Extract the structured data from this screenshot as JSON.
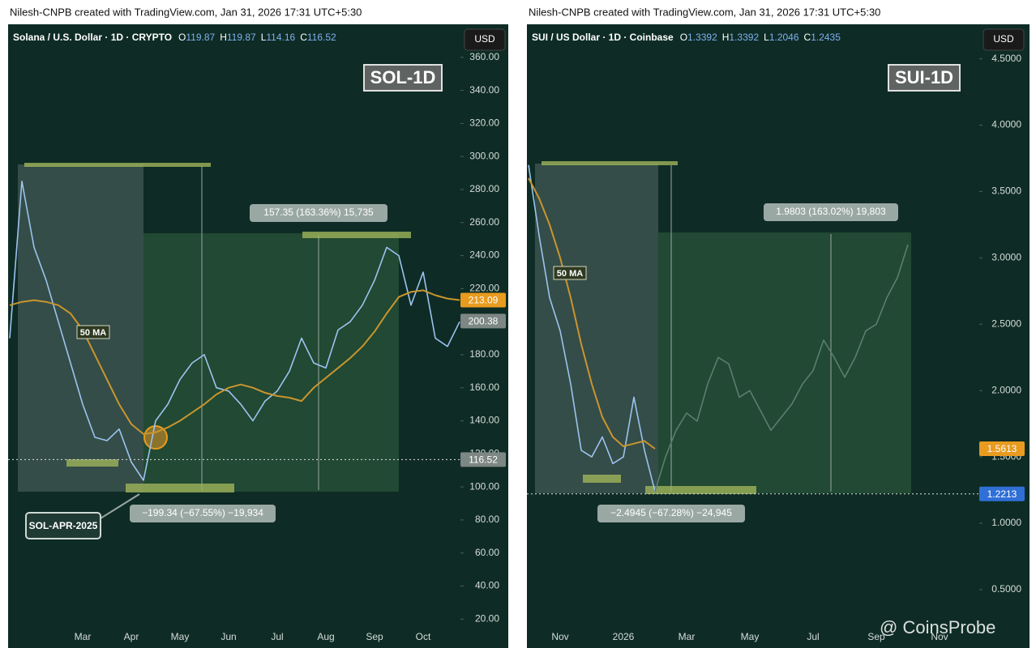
{
  "chart_data": [
    {
      "type": "line",
      "credit": "Nilesh-CNPB created with TradingView.com, Jan 31, 2026 17:31 UTC+5:30",
      "symbol": "Solana / U.S. Dollar · 1D · CRYPTO",
      "ohlc_labels": [
        "O",
        "H",
        "L",
        "C"
      ],
      "ohlc": [
        119.87,
        119.87,
        114.16,
        116.52
      ],
      "currency": "USD",
      "badge": "SOL-1D",
      "annotations": [
        "157.35 (163.36%) 15,735",
        "−199.34 (−67.55%) −19,934",
        "SOL-APR-2025"
      ],
      "categories": [
        null,
        null,
        null,
        null,
        null,
        null,
        "Mar",
        null,
        null,
        null,
        "Apr",
        null,
        null,
        null,
        "May",
        null,
        null,
        null,
        "Jun",
        null,
        null,
        null,
        "Jul",
        null,
        null,
        null,
        "Aug",
        null,
        null,
        null,
        "Sep",
        null,
        null,
        null,
        "Oct",
        null,
        null,
        null
      ],
      "series": [
        {
          "color": "#9cc3ef",
          "values": [
            190,
            285,
            245,
            225,
            200,
            175,
            150,
            130,
            128,
            135,
            115,
            104,
            140,
            150,
            165,
            175,
            180,
            160,
            158,
            150,
            140,
            152,
            158,
            170,
            190,
            175,
            172,
            195,
            200,
            210,
            225,
            245,
            240,
            210,
            230,
            190,
            185,
            200
          ]
        },
        {
          "name": "50 MA",
          "color": "#c9952f",
          "values": [
            210,
            212,
            213,
            212,
            210,
            205,
            195,
            180,
            165,
            150,
            138,
            132,
            133,
            136,
            140,
            145,
            150,
            156,
            160,
            162,
            160,
            157,
            155,
            154,
            152,
            160,
            166,
            172,
            178,
            185,
            194,
            205,
            215,
            218,
            219,
            216,
            214,
            213.09
          ]
        }
      ],
      "price_labels": [
        {
          "value": 213.09,
          "color": "#e89b1f",
          "dotted": false
        },
        {
          "value": 200.38,
          "color": "#7d8784",
          "dotted": false
        },
        {
          "value": 116.52,
          "color": "#7d8784",
          "dotted": true
        }
      ],
      "ylim": [
        2.5,
        380
      ],
      "yticks": [
        {
          "value": 20,
          "label": "20.00"
        },
        {
          "value": 40,
          "label": "40.00"
        },
        {
          "value": 60,
          "label": "60.00"
        },
        {
          "value": 80,
          "label": "80.00"
        },
        {
          "value": 100,
          "label": "100.00"
        },
        {
          "value": 120,
          "label": "120.00"
        },
        {
          "value": 140,
          "label": "140.00"
        },
        {
          "value": 160,
          "label": "160.00"
        },
        {
          "value": 180,
          "label": "180.00"
        },
        {
          "value": 200,
          "label": "200.00"
        },
        {
          "value": 220,
          "label": "220.00"
        },
        {
          "value": 240,
          "label": "240.00"
        },
        {
          "value": 260,
          "label": "260.00"
        },
        {
          "value": 280,
          "label": "280.00"
        },
        {
          "value": 300,
          "label": "300.00"
        },
        {
          "value": 320,
          "label": "320.00"
        },
        {
          "value": 340,
          "label": "340.00"
        },
        {
          "value": 360,
          "label": "360.00"
        }
      ]
    },
    {
      "type": "line",
      "credit": "Nilesh-CNPB created with TradingView.com, Jan 31, 2026 17:31 UTC+5:30",
      "symbol": "SUI / US Dollar · 1D · Coinbase",
      "ohlc_labels": [
        "O",
        "H",
        "L",
        "C"
      ],
      "ohlc": [
        1.3392,
        1.3392,
        1.2046,
        1.2435
      ],
      "currency": "USD",
      "badge": "SUI-1D",
      "annotations": [
        "1.9803 (163.02%) 19,803",
        "−2.4945 (−67.28%) −24,945"
      ],
      "categories": [
        null,
        null,
        null,
        "Nov",
        null,
        null,
        null,
        null,
        null,
        "2026",
        null,
        null,
        null,
        null,
        null,
        "Mar",
        null,
        null,
        null,
        null,
        null,
        "May",
        null,
        null,
        null,
        null,
        null,
        "Jul",
        null,
        null,
        null,
        null,
        null,
        "Sep",
        null,
        null,
        null,
        null,
        null,
        "Nov",
        null,
        null,
        null
      ],
      "series": [
        {
          "color": "#9cc3ef",
          "values": [
            3.7,
            3.17,
            2.7,
            2.45,
            2.05,
            1.55,
            1.5,
            1.65,
            1.45,
            1.5,
            1.95,
            1.55,
            1.24,
            null,
            null,
            null,
            null,
            null,
            null,
            null,
            null,
            null,
            null,
            null,
            null,
            null,
            null,
            null,
            null,
            null,
            null,
            null,
            null,
            null,
            null,
            null,
            null,
            null,
            null,
            null,
            null,
            null,
            null
          ]
        },
        {
          "name": "50 MA",
          "color": "#c9952f",
          "values": [
            3.6,
            3.45,
            3.25,
            3.0,
            2.7,
            2.35,
            2.05,
            1.8,
            1.65,
            1.58,
            1.6,
            1.62,
            1.5613,
            null,
            null,
            null,
            null,
            null,
            null,
            null,
            null,
            null,
            null,
            null,
            null,
            null,
            null,
            null,
            null,
            null,
            null,
            null,
            null,
            null,
            null,
            null,
            null,
            null,
            null,
            null,
            null,
            null,
            null
          ]
        },
        {
          "color": "#5b7f6e",
          "values": [
            null,
            null,
            null,
            null,
            null,
            null,
            null,
            null,
            null,
            null,
            null,
            null,
            1.24,
            1.5,
            1.7,
            1.83,
            1.77,
            2.05,
            2.25,
            2.2,
            1.95,
            2.0,
            1.85,
            1.7,
            1.8,
            1.9,
            2.05,
            2.15,
            2.38,
            2.25,
            2.1,
            2.25,
            2.45,
            2.5,
            2.7,
            2.85,
            3.1,
            null,
            null,
            null,
            null,
            null,
            null
          ]
        }
      ],
      "price_labels": [
        {
          "value": 1.5613,
          "color": "#e89b1f",
          "dotted": false
        },
        {
          "value": 1.2213,
          "color": "#2f6fd6",
          "dotted": true
        }
      ],
      "ylim": [
        0.06,
        4.76
      ],
      "yticks": [
        {
          "value": 0.5,
          "label": "0.5000"
        },
        {
          "value": 1,
          "label": "1.0000"
        },
        {
          "value": 1.5,
          "label": "1.5000"
        },
        {
          "value": 2,
          "label": "2.0000"
        },
        {
          "value": 2.5,
          "label": "2.5000"
        },
        {
          "value": 3,
          "label": "3.0000"
        },
        {
          "value": 3.5,
          "label": "3.5000"
        },
        {
          "value": 4,
          "label": "4.0000"
        },
        {
          "value": 4.5,
          "label": "4.5000"
        }
      ]
    }
  ],
  "watermark": "@ CoinsProbe"
}
